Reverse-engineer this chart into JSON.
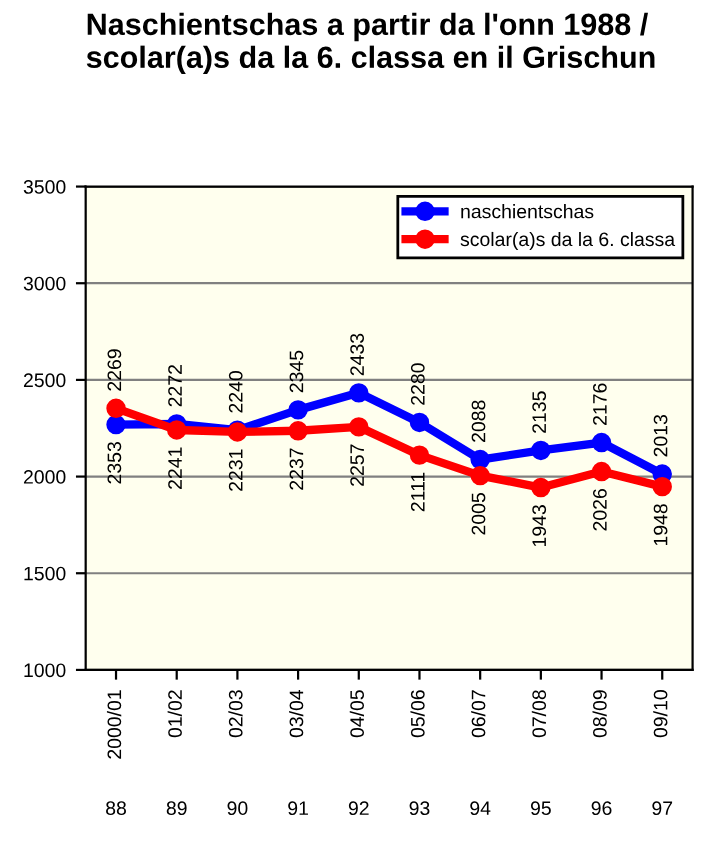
{
  "chart_data": {
    "type": "line",
    "title": "Naschientschas a partir da l'onn 1988 / scolar(a)s da la 6. classa en il Grischun",
    "categories": [
      "2000/01",
      "01/02",
      "02/03",
      "03/04",
      "04/05",
      "05/06",
      "06/07",
      "07/08",
      "08/09",
      "09/10"
    ],
    "series": [
      {
        "name": "naschientschas",
        "color": "#0000ff",
        "values": [
          2269,
          2272,
          2240,
          2345,
          2433,
          2280,
          2088,
          2135,
          2176,
          2013
        ]
      },
      {
        "name": "scolar(a)s da la 6. classa",
        "color": "#ff0000",
        "values": [
          2353,
          2241,
          2231,
          2237,
          2257,
          2111,
          2005,
          1943,
          2026,
          1948
        ]
      }
    ],
    "annotations": [
      "88",
      "89",
      "90",
      "91",
      "92",
      "93",
      "94",
      "95",
      "96",
      "97"
    ],
    "ylim": [
      1000,
      3500
    ],
    "yticks": [
      1000,
      1500,
      2000,
      2500,
      3000,
      3500
    ],
    "grid": "y",
    "legend": "top right",
    "marker": "circle",
    "line_style": "solid",
    "data_labels": true
  }
}
